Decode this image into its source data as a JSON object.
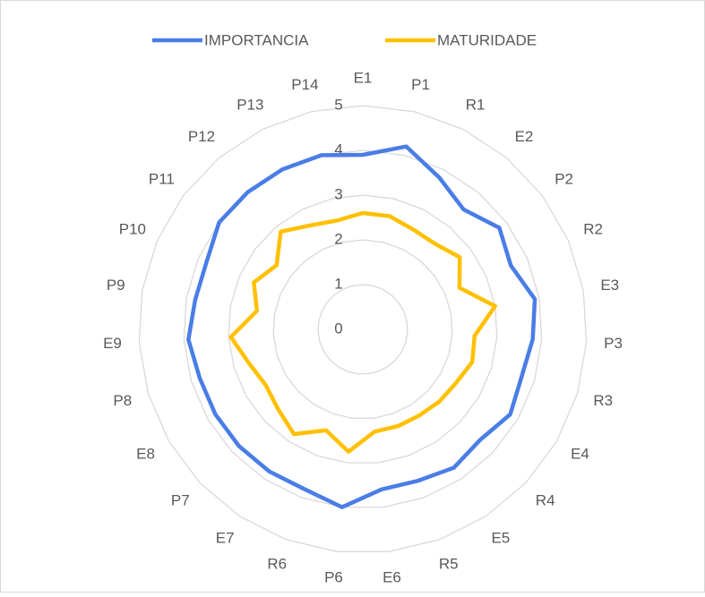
{
  "chart_data": {
    "type": "radar",
    "categories": [
      "E1",
      "P1",
      "R1",
      "E2",
      "P2",
      "R2",
      "E3",
      "P3",
      "R3",
      "E4",
      "R4",
      "E5",
      "R5",
      "E6",
      "P6",
      "R6",
      "E7",
      "P7",
      "E8",
      "P8",
      "E9",
      "P9",
      "P10",
      "P11",
      "P12",
      "P13",
      "P14"
    ],
    "series": [
      {
        "name": "IMPORTANCIA",
        "color": "#4a7de6",
        "values": [
          3.9,
          4.2,
          3.8,
          3.5,
          3.8,
          3.6,
          3.9,
          3.8,
          3.7,
          3.8,
          3.6,
          3.7,
          3.6,
          3.6,
          4.0,
          3.8,
          3.8,
          3.8,
          3.8,
          3.8,
          3.9,
          3.8,
          3.8,
          4.0,
          4.0,
          4.0,
          4.0
        ]
      },
      {
        "name": "MATURIDADE",
        "color": "#ffc000",
        "values": [
          2.6,
          2.6,
          2.5,
          2.5,
          2.7,
          2.35,
          3.0,
          2.5,
          2.55,
          2.4,
          2.35,
          2.3,
          2.3,
          2.3,
          2.75,
          2.4,
          2.8,
          2.6,
          2.5,
          2.65,
          2.95,
          2.4,
          2.65,
          2.4,
          2.85,
          2.6,
          2.5
        ]
      }
    ],
    "ylim": [
      0,
      5
    ],
    "yticks": [
      0,
      1,
      2,
      3,
      4,
      5
    ],
    "grid": true,
    "legend": "top"
  }
}
